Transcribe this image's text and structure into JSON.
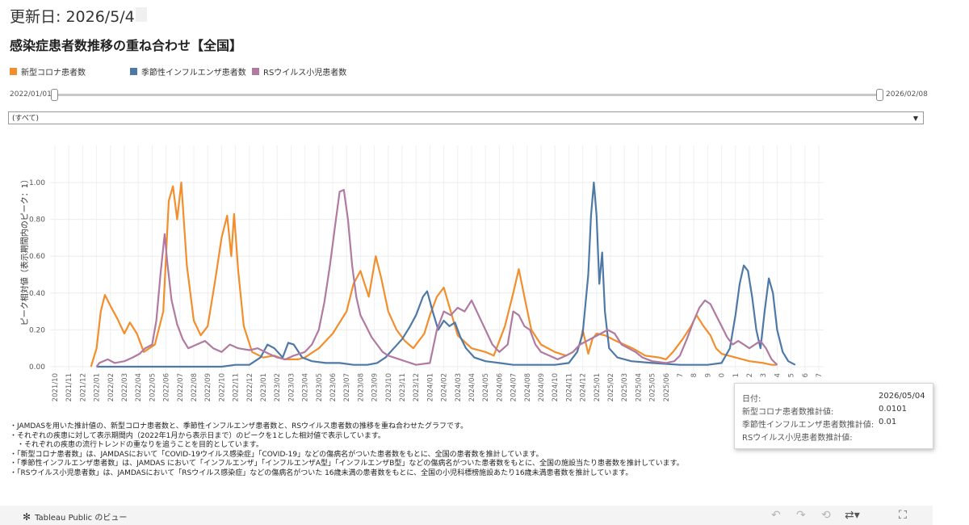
{
  "header": {
    "updated_label": "更新日: 2026/5/4",
    "title": "感染症患者数推移の重ね合わせ【全国】"
  },
  "legend": [
    {
      "name": "新型コロナ患者数",
      "color": "#F28E2B"
    },
    {
      "name": "季節性インフルエンザ患者数",
      "color": "#4E79A7"
    },
    {
      "name": "RSウイルス小児患者数",
      "color": "#B07AA1"
    }
  ],
  "slider": {
    "start_label": "2022/01/01",
    "end_label": "2026/02/08"
  },
  "filter": {
    "selected": "(すべて)",
    "arrow": "▼"
  },
  "chart_data": {
    "type": "line",
    "ylabel": "ピーク相対値（表示期間内のピーク：1）",
    "ylim": [
      0,
      1.1
    ],
    "yticks": [
      "0.00",
      "0.20",
      "0.40",
      "0.60",
      "0.80",
      "1.00"
    ],
    "x_tick_labels": [
      "2021/10",
      "2021/11",
      "2021/12",
      "2022/01",
      "2022/02",
      "2022/03",
      "2022/04",
      "2022/05",
      "2022/06",
      "2022/07",
      "2022/08",
      "2022/09",
      "2022/10",
      "2022/11",
      "2022/12",
      "2023/01",
      "2023/02",
      "2023/03",
      "2023/04",
      "2023/05",
      "2023/06",
      "2023/07",
      "2023/08",
      "2023/09",
      "2023/10",
      "2023/11",
      "2023/12",
      "2024/01",
      "2024/02",
      "2024/03",
      "2024/04",
      "2024/05",
      "2024/06",
      "2024/07",
      "2024/08",
      "2024/09",
      "2024/10",
      "2024/11",
      "2024/12",
      "2025/01",
      "2025/02",
      "2025/03",
      "2025/04",
      "2025/05",
      "2025/06",
      "7",
      "8",
      "9",
      "0",
      "1",
      "2",
      "3",
      "4",
      "5",
      "6",
      "7"
    ],
    "series": [
      {
        "name": "新型コロナ患者数",
        "color": "#F28E2B",
        "points": [
          [
            2.6,
            0
          ],
          [
            3.0,
            0.1
          ],
          [
            3.3,
            0.3
          ],
          [
            3.6,
            0.39
          ],
          [
            4.0,
            0.33
          ],
          [
            4.5,
            0.26
          ],
          [
            5.0,
            0.18
          ],
          [
            5.4,
            0.24
          ],
          [
            5.9,
            0.18
          ],
          [
            6.4,
            0.08
          ],
          [
            7.2,
            0.12
          ],
          [
            7.8,
            0.3
          ],
          [
            8.2,
            0.9
          ],
          [
            8.5,
            0.98
          ],
          [
            8.8,
            0.8
          ],
          [
            9.1,
            1.0
          ],
          [
            9.5,
            0.55
          ],
          [
            10.0,
            0.25
          ],
          [
            10.5,
            0.17
          ],
          [
            11.0,
            0.22
          ],
          [
            11.5,
            0.45
          ],
          [
            12.0,
            0.7
          ],
          [
            12.4,
            0.82
          ],
          [
            12.7,
            0.6
          ],
          [
            12.9,
            0.83
          ],
          [
            13.2,
            0.52
          ],
          [
            13.6,
            0.22
          ],
          [
            14.2,
            0.08
          ],
          [
            15.0,
            0.05
          ],
          [
            15.8,
            0.06
          ],
          [
            16.5,
            0.04
          ],
          [
            17.5,
            0.04
          ],
          [
            18.0,
            0.05
          ],
          [
            19.0,
            0.1
          ],
          [
            20.0,
            0.18
          ],
          [
            21.0,
            0.3
          ],
          [
            21.5,
            0.45
          ],
          [
            22.0,
            0.52
          ],
          [
            22.6,
            0.38
          ],
          [
            23.1,
            0.6
          ],
          [
            23.5,
            0.48
          ],
          [
            24.0,
            0.3
          ],
          [
            24.6,
            0.2
          ],
          [
            25.2,
            0.14
          ],
          [
            25.8,
            0.1
          ],
          [
            26.6,
            0.18
          ],
          [
            27.0,
            0.28
          ],
          [
            27.5,
            0.38
          ],
          [
            28.0,
            0.43
          ],
          [
            28.5,
            0.3
          ],
          [
            29.0,
            0.17
          ],
          [
            30.0,
            0.1
          ],
          [
            31.0,
            0.08
          ],
          [
            31.6,
            0.06
          ],
          [
            32.4,
            0.22
          ],
          [
            33.0,
            0.4
          ],
          [
            33.4,
            0.53
          ],
          [
            33.8,
            0.38
          ],
          [
            34.3,
            0.2
          ],
          [
            35.0,
            0.12
          ],
          [
            36.0,
            0.08
          ],
          [
            36.8,
            0.06
          ],
          [
            37.3,
            0.08
          ],
          [
            37.8,
            0.12
          ],
          [
            38.0,
            0.2
          ],
          [
            38.4,
            0.07
          ],
          [
            38.7,
            0.15
          ],
          [
            39.0,
            0.18
          ],
          [
            39.6,
            0.17
          ],
          [
            40.4,
            0.14
          ],
          [
            41.0,
            0.12
          ],
          [
            41.6,
            0.1
          ],
          [
            42.5,
            0.06
          ],
          [
            43.5,
            0.05
          ],
          [
            44.0,
            0.04
          ],
          [
            44.5,
            0.08
          ],
          [
            45.2,
            0.15
          ],
          [
            45.8,
            0.22
          ],
          [
            46.2,
            0.28
          ],
          [
            46.7,
            0.22
          ],
          [
            47.2,
            0.17
          ],
          [
            47.6,
            0.1
          ],
          [
            48.0,
            0.07
          ],
          [
            48.5,
            0.06
          ],
          [
            49.0,
            0.05
          ],
          [
            50.0,
            0.03
          ],
          [
            51.0,
            0.02
          ],
          [
            51.6,
            0.01
          ],
          [
            52.0,
            0.01
          ]
        ]
      },
      {
        "name": "季節性インフルエンザ患者数",
        "color": "#4E79A7",
        "points": [
          [
            3.0,
            0
          ],
          [
            12.0,
            0
          ],
          [
            13.0,
            0.01
          ],
          [
            14.0,
            0.01
          ],
          [
            14.8,
            0.05
          ],
          [
            15.3,
            0.12
          ],
          [
            15.8,
            0.1
          ],
          [
            16.4,
            0.05
          ],
          [
            16.8,
            0.13
          ],
          [
            17.2,
            0.12
          ],
          [
            17.8,
            0.05
          ],
          [
            18.5,
            0.03
          ],
          [
            19.5,
            0.02
          ],
          [
            20.5,
            0.02
          ],
          [
            21.5,
            0.01
          ],
          [
            22.5,
            0.01
          ],
          [
            23.2,
            0.02
          ],
          [
            23.8,
            0.05
          ],
          [
            24.4,
            0.1
          ],
          [
            25.0,
            0.15
          ],
          [
            25.5,
            0.21
          ],
          [
            26.0,
            0.28
          ],
          [
            26.5,
            0.38
          ],
          [
            26.8,
            0.41
          ],
          [
            27.2,
            0.3
          ],
          [
            27.6,
            0.2
          ],
          [
            28.0,
            0.25
          ],
          [
            28.4,
            0.22
          ],
          [
            28.8,
            0.24
          ],
          [
            29.2,
            0.16
          ],
          [
            29.6,
            0.1
          ],
          [
            30.2,
            0.05
          ],
          [
            31.0,
            0.03
          ],
          [
            32.0,
            0.02
          ],
          [
            33.0,
            0.01
          ],
          [
            34.0,
            0.01
          ],
          [
            35.0,
            0.01
          ],
          [
            36.0,
            0.01
          ],
          [
            37.0,
            0.02
          ],
          [
            37.6,
            0.08
          ],
          [
            38.0,
            0.18
          ],
          [
            38.4,
            0.5
          ],
          [
            38.6,
            0.82
          ],
          [
            38.8,
            1.0
          ],
          [
            39.0,
            0.82
          ],
          [
            39.2,
            0.45
          ],
          [
            39.4,
            0.62
          ],
          [
            39.6,
            0.3
          ],
          [
            39.9,
            0.1
          ],
          [
            40.5,
            0.05
          ],
          [
            41.5,
            0.03
          ],
          [
            43.0,
            0.02
          ],
          [
            45.0,
            0.01
          ],
          [
            47.0,
            0.01
          ],
          [
            48.0,
            0.02
          ],
          [
            48.6,
            0.1
          ],
          [
            49.0,
            0.28
          ],
          [
            49.3,
            0.45
          ],
          [
            49.6,
            0.55
          ],
          [
            49.9,
            0.52
          ],
          [
            50.2,
            0.38
          ],
          [
            50.5,
            0.2
          ],
          [
            50.8,
            0.1
          ],
          [
            51.1,
            0.3
          ],
          [
            51.4,
            0.48
          ],
          [
            51.7,
            0.4
          ],
          [
            52.0,
            0.2
          ],
          [
            52.4,
            0.08
          ],
          [
            52.8,
            0.03
          ],
          [
            53.3,
            0.01
          ]
        ]
      },
      {
        "name": "RSウイルス小児患者数",
        "color": "#B07AA1",
        "points": [
          [
            3.0,
            0
          ],
          [
            3.2,
            0.02
          ],
          [
            3.8,
            0.04
          ],
          [
            4.3,
            0.02
          ],
          [
            5.0,
            0.03
          ],
          [
            5.6,
            0.05
          ],
          [
            6.1,
            0.07
          ],
          [
            6.5,
            0.1
          ],
          [
            7.0,
            0.12
          ],
          [
            7.3,
            0.25
          ],
          [
            7.6,
            0.5
          ],
          [
            7.9,
            0.72
          ],
          [
            8.1,
            0.56
          ],
          [
            8.4,
            0.36
          ],
          [
            8.8,
            0.23
          ],
          [
            9.2,
            0.15
          ],
          [
            9.6,
            0.1
          ],
          [
            10.2,
            0.12
          ],
          [
            10.8,
            0.14
          ],
          [
            11.4,
            0.1
          ],
          [
            12.0,
            0.08
          ],
          [
            12.6,
            0.12
          ],
          [
            13.2,
            0.1
          ],
          [
            14.0,
            0.09
          ],
          [
            14.6,
            0.1
          ],
          [
            15.4,
            0.07
          ],
          [
            16.0,
            0.05
          ],
          [
            16.6,
            0.04
          ],
          [
            17.2,
            0.06
          ],
          [
            18.0,
            0.08
          ],
          [
            18.5,
            0.12
          ],
          [
            19.0,
            0.2
          ],
          [
            19.4,
            0.35
          ],
          [
            19.8,
            0.55
          ],
          [
            20.2,
            0.78
          ],
          [
            20.5,
            0.95
          ],
          [
            20.8,
            0.96
          ],
          [
            21.1,
            0.8
          ],
          [
            21.4,
            0.55
          ],
          [
            21.7,
            0.38
          ],
          [
            22.0,
            0.28
          ],
          [
            22.4,
            0.22
          ],
          [
            22.8,
            0.16
          ],
          [
            23.2,
            0.12
          ],
          [
            23.6,
            0.08
          ],
          [
            24.0,
            0.06
          ],
          [
            26.0,
            0.01
          ],
          [
            27.0,
            0.02
          ],
          [
            27.5,
            0.2
          ],
          [
            28.0,
            0.3
          ],
          [
            28.5,
            0.28
          ],
          [
            29.0,
            0.32
          ],
          [
            29.5,
            0.3
          ],
          [
            30.0,
            0.36
          ],
          [
            30.5,
            0.28
          ],
          [
            31.0,
            0.2
          ],
          [
            31.5,
            0.12
          ],
          [
            32.0,
            0.08
          ],
          [
            32.6,
            0.12
          ],
          [
            33.0,
            0.3
          ],
          [
            33.4,
            0.28
          ],
          [
            33.8,
            0.22
          ],
          [
            34.2,
            0.2
          ],
          [
            34.6,
            0.12
          ],
          [
            35.0,
            0.08
          ],
          [
            35.6,
            0.06
          ],
          [
            36.2,
            0.04
          ],
          [
            36.8,
            0.06
          ],
          [
            37.3,
            0.08
          ],
          [
            37.8,
            0.12
          ],
          [
            38.3,
            0.14
          ],
          [
            38.8,
            0.16
          ],
          [
            39.3,
            0.18
          ],
          [
            39.8,
            0.2
          ],
          [
            40.3,
            0.18
          ],
          [
            40.8,
            0.12
          ],
          [
            41.3,
            0.1
          ],
          [
            41.8,
            0.08
          ],
          [
            42.3,
            0.05
          ],
          [
            43.0,
            0.03
          ],
          [
            44.0,
            0.02
          ],
          [
            44.6,
            0.03
          ],
          [
            45.0,
            0.06
          ],
          [
            45.5,
            0.15
          ],
          [
            46.0,
            0.25
          ],
          [
            46.4,
            0.32
          ],
          [
            46.8,
            0.36
          ],
          [
            47.2,
            0.34
          ],
          [
            47.6,
            0.28
          ],
          [
            48.0,
            0.22
          ],
          [
            48.4,
            0.16
          ],
          [
            48.8,
            0.12
          ],
          [
            49.2,
            0.14
          ],
          [
            49.6,
            0.12
          ],
          [
            50.0,
            0.1
          ],
          [
            50.4,
            0.12
          ],
          [
            50.8,
            0.14
          ],
          [
            51.2,
            0.1
          ],
          [
            51.6,
            0.04
          ],
          [
            52.0,
            0.01
          ]
        ]
      }
    ]
  },
  "notes": [
    "・JAMDASを用いた推計値の、新型コロナ患者数と、季節性インフルエンザ患者数と、RSウイルス患者数の推移を重ね合わせたグラフです。",
    "・それぞれの疾患に対して表示期間内（2022年1月から表示日まで）のピークを1とした相対値で表示しています。",
    "　・それぞれの疾患の流行トレンドの重なりを追うことを目的としています。",
    "・「新型コロナ患者数」は、JAMDASにおいて「COVID-19ウイルス感染症」「COVID-19」などの傷病名がついた患者数をもとに、全国の患者数を推計しています。",
    "・「季節性インフルエンザ患者数」は、JAMDAS において「インフルエンザ」「インフルエンザA型」「インフルエンザB型」などの傷病名がついた患者数をもとに、全国の施設当たり患者数を推計しています。",
    "・「RSウイルス小児患者数」は、JAMDASにおいて「RSウイルス感染症」などの傷病名がついた 16歳未満の患者数をもとに、全国の小児科標榜施設あたり16歳未満患者数を推計しています。"
  ],
  "tooltip": {
    "rows": [
      {
        "label": "日付:",
        "value": "2026/05/04"
      },
      {
        "label": "新型コロナ患者数推計値:",
        "value": "0.0101"
      },
      {
        "label": "季節性インフルエンザ患者数推計値:",
        "value": "0.01"
      },
      {
        "label": "RSウイルス小児患者数推計値:",
        "value": ""
      }
    ]
  },
  "footer": {
    "label": "Tableau Public のビュー",
    "logo_icon": "tableau-logo-icon"
  },
  "toolbar_icons": [
    "undo-icon",
    "redo-icon",
    "revert-icon",
    "share-icon",
    "fullscreen-icon"
  ]
}
